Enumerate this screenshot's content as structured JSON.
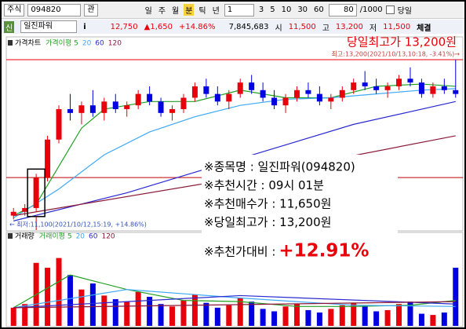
{
  "toolbar": {
    "market": "주식",
    "code": "094820",
    "view": "관",
    "periods": [
      "일",
      "주",
      "월",
      "분",
      "틱",
      "년"
    ],
    "interval": "1",
    "minutes": [
      "3",
      "5",
      "10",
      "30",
      "60"
    ],
    "count": "80",
    "total": "/1000",
    "today": "당일"
  },
  "quote": {
    "badge": "신",
    "name": "일진파워",
    "info": "i",
    "price": "12,750",
    "change": "▲1,650",
    "rate": "+14.86%",
    "volume": "7,845,683",
    "open_label": "시",
    "open": "11,500",
    "high_label": "고",
    "high": "13,200",
    "low_label": "저",
    "low": "11,500",
    "trade": "체결"
  },
  "info": {
    "lines": [
      "※종목명 : 일진파워(094820)",
      "※추천시간 : 09시 01분",
      "※추천매수가 : 11,650원",
      "※당일최고가 : 13,200원"
    ],
    "change_label": "※추천가대비 : ",
    "change": "+12.91%"
  },
  "chart_data": [
    {
      "type": "candlestick",
      "title": "가격차트",
      "up_color": "#e8000b",
      "down_color": "#0000e0",
      "ylim": [
        10960,
        13500
      ],
      "high_label": "당일최고가 13,200원",
      "high_note": "최고:13,200(2021/10/13,10:18, -3.41%)→",
      "low_note": "← 최저:11,100(2021/10/12,15:19, +14.86%)",
      "hlines": [
        {
          "value": 13200,
          "color": "#e8000b"
        },
        {
          "value": 11650,
          "color": "#c00000"
        }
      ],
      "highlight_candle": 2,
      "candles": [
        [
          11150,
          11250,
          11100,
          11200
        ],
        [
          11200,
          11300,
          11150,
          11250
        ],
        [
          11250,
          11700,
          11200,
          11650
        ],
        [
          11650,
          12200,
          11600,
          12150
        ],
        [
          12150,
          12600,
          12100,
          12550
        ],
        [
          12550,
          12750,
          12400,
          12500
        ],
        [
          12500,
          12650,
          12350,
          12600
        ],
        [
          12600,
          12800,
          12450,
          12500
        ],
        [
          12500,
          12700,
          12400,
          12650
        ],
        [
          12650,
          12750,
          12500,
          12550
        ],
        [
          12550,
          12650,
          12450,
          12600
        ],
        [
          12600,
          12800,
          12550,
          12750
        ],
        [
          12750,
          12850,
          12600,
          12650
        ],
        [
          12650,
          12700,
          12450,
          12500
        ],
        [
          12500,
          12600,
          12400,
          12550
        ],
        [
          12550,
          12750,
          12500,
          12700
        ],
        [
          12700,
          12900,
          12650,
          12850
        ],
        [
          12850,
          12950,
          12700,
          12750
        ],
        [
          12750,
          12850,
          12600,
          12650
        ],
        [
          12650,
          12800,
          12550,
          12750
        ],
        [
          12750,
          12950,
          12700,
          12900
        ],
        [
          12900,
          13000,
          12750,
          12800
        ],
        [
          12800,
          12900,
          12650,
          12700
        ],
        [
          12700,
          12800,
          12550,
          12600
        ],
        [
          12600,
          12750,
          12500,
          12700
        ],
        [
          12700,
          12850,
          12650,
          12800
        ],
        [
          12800,
          12900,
          12700,
          12750
        ],
        [
          12750,
          12850,
          12600,
          12650
        ],
        [
          12650,
          12750,
          12550,
          12700
        ],
        [
          12700,
          12850,
          12650,
          12800
        ],
        [
          12800,
          12950,
          12750,
          12900
        ],
        [
          12900,
          13050,
          12800,
          12850
        ],
        [
          12850,
          12950,
          12750,
          12800
        ],
        [
          12800,
          12900,
          12700,
          12850
        ],
        [
          12850,
          13000,
          12800,
          12950
        ],
        [
          12950,
          13100,
          12850,
          12900
        ],
        [
          12900,
          12950,
          12700,
          12750
        ],
        [
          12750,
          12900,
          12700,
          12850
        ],
        [
          12850,
          12950,
          12750,
          12800
        ],
        [
          12800,
          13200,
          12700,
          12750
        ]
      ],
      "series": [
        {
          "name": "가격이평 5",
          "color": "#22a022",
          "x": [
            0,
            2,
            4,
            6,
            8,
            12,
            16,
            20,
            24,
            28,
            32,
            36,
            39
          ],
          "values": [
            11150,
            11300,
            11800,
            12300,
            12550,
            12650,
            12650,
            12800,
            12700,
            12700,
            12850,
            12880,
            12850
          ]
        },
        {
          "name": "20",
          "color": "#3fa9f5",
          "x": [
            0,
            4,
            8,
            12,
            16,
            20,
            24,
            28,
            32,
            36,
            39
          ],
          "values": [
            11120,
            11500,
            11950,
            12250,
            12450,
            12600,
            12680,
            12700,
            12750,
            12800,
            12820
          ]
        },
        {
          "name": "60",
          "color": "#2a2ad0",
          "x": [
            0,
            10,
            20,
            30,
            39
          ],
          "values": [
            11080,
            11450,
            11900,
            12350,
            12650
          ]
        },
        {
          "name": "120",
          "color": "#8b1a3a",
          "x": [
            0,
            20,
            39
          ],
          "values": [
            11150,
            11650,
            12200
          ]
        }
      ]
    },
    {
      "type": "bar",
      "title": "거래량",
      "ylim": [
        0,
        700000
      ],
      "values": [
        150000,
        180000,
        520000,
        480000,
        560000,
        420000,
        300000,
        350000,
        250000,
        220000,
        200000,
        280000,
        240000,
        180000,
        160000,
        210000,
        260000,
        190000,
        150000,
        170000,
        230000,
        200000,
        140000,
        120000,
        160000,
        180000,
        130000,
        110000,
        140000,
        170000,
        190000,
        160000,
        120000,
        130000,
        180000,
        200000,
        100000,
        90000,
        110000,
        480000
      ],
      "series": [
        {
          "name": "거래이평 5",
          "color": "#22a022",
          "x": [
            0,
            5,
            10,
            15,
            20,
            25,
            30,
            35,
            39
          ],
          "values": [
            150000,
            420000,
            300000,
            210000,
            200000,
            160000,
            160000,
            170000,
            210000
          ]
        },
        {
          "name": "20",
          "color": "#3fa9f5",
          "x": [
            0,
            10,
            20,
            30,
            39
          ],
          "values": [
            150000,
            300000,
            230000,
            170000,
            160000
          ]
        },
        {
          "name": "60",
          "color": "#2a2ad0",
          "x": [
            0,
            20,
            39
          ],
          "values": [
            150000,
            250000,
            180000
          ]
        },
        {
          "name": "120",
          "color": "#8b1a3a",
          "x": [
            0,
            39
          ],
          "values": [
            150000,
            200000
          ]
        }
      ]
    }
  ]
}
